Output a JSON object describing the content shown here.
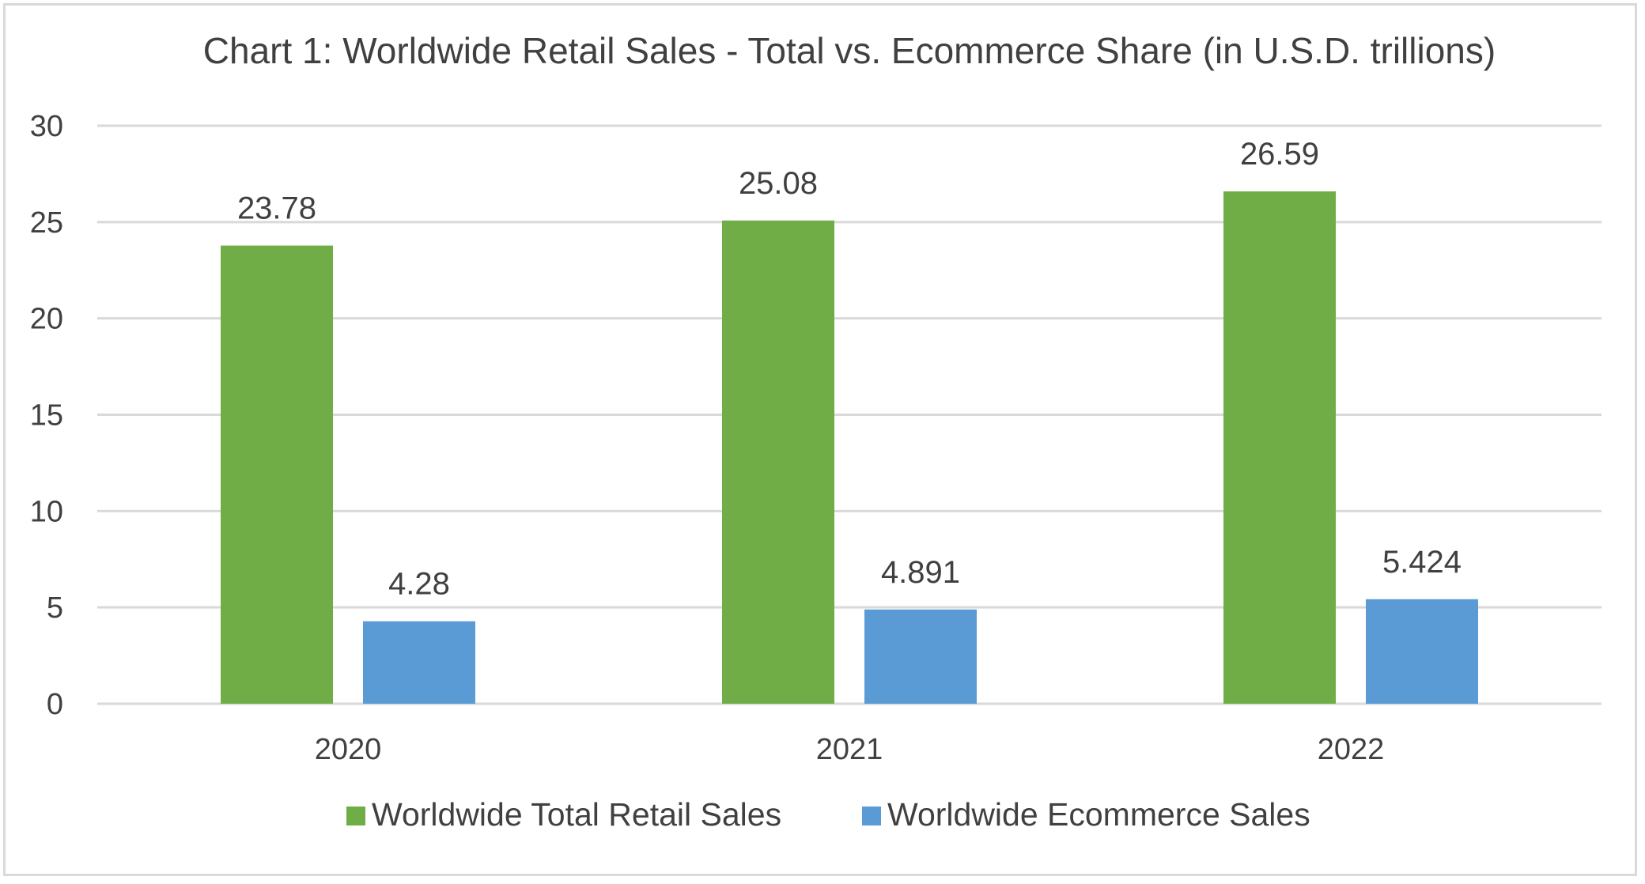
{
  "chart_data": {
    "type": "bar",
    "title": "Chart 1: Worldwide Retail Sales - Total vs. Ecommerce Share (in U.S.D. trillions)",
    "xlabel": "",
    "ylabel": "",
    "categories": [
      "2020",
      "2021",
      "2022"
    ],
    "series": [
      {
        "name": "Worldwide Total Retail Sales",
        "values": [
          23.78,
          25.08,
          26.59
        ],
        "labels": [
          "23.78",
          "25.08",
          "26.59"
        ],
        "color": "#70ad47"
      },
      {
        "name": "Worldwide Ecommerce Sales",
        "values": [
          4.28,
          4.891,
          5.424
        ],
        "labels": [
          "4.28",
          "4.891",
          "5.424"
        ],
        "color": "#5b9bd5"
      }
    ],
    "ylim": [
      0,
      30
    ],
    "yticks": [
      0,
      5,
      10,
      15,
      20,
      25,
      30
    ],
    "grid": true,
    "gridline_color": "#d9d9d9",
    "legend_position": "bottom"
  }
}
